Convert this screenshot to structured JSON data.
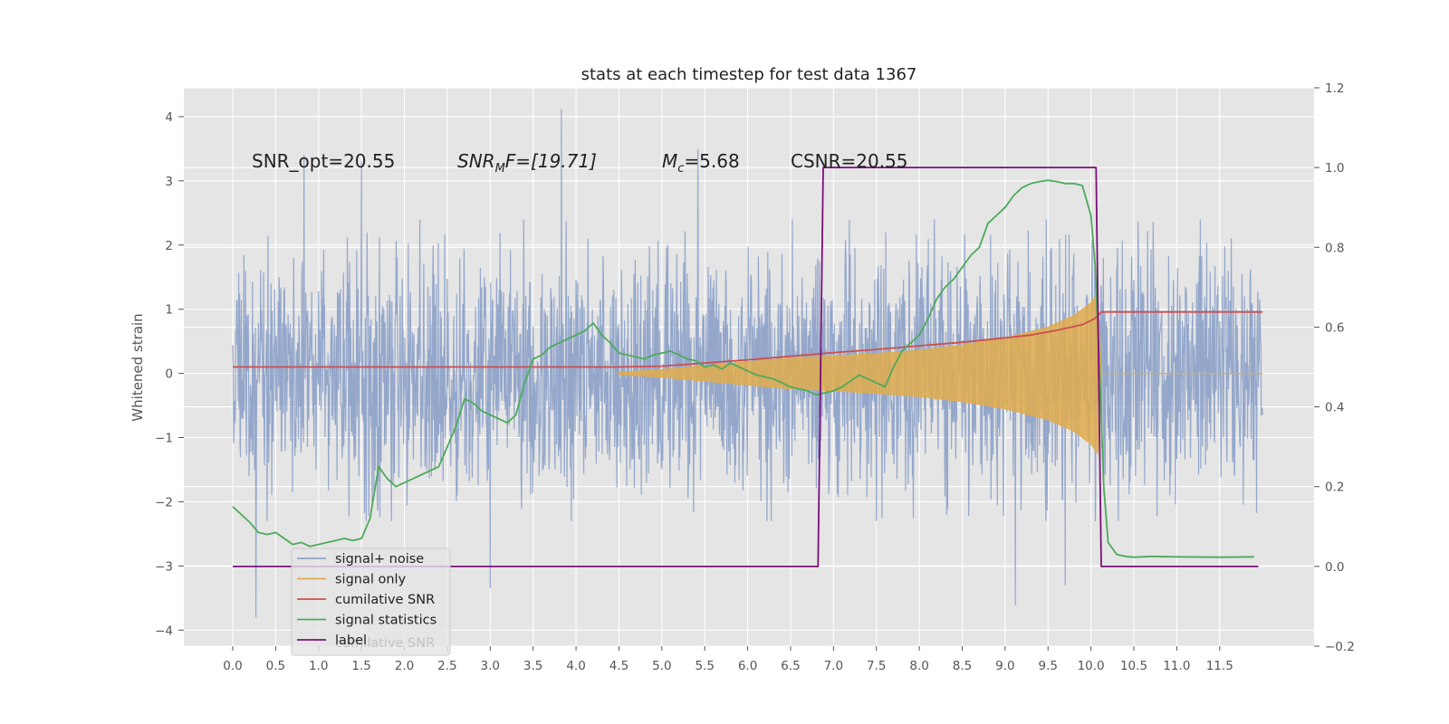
{
  "chart_data": {
    "type": "line",
    "title": "stats at each timestep for test data 1367",
    "ylabel": "Whitened strain",
    "xlim": [
      -0.57,
      12.6
    ],
    "ylim": [
      -4.25,
      4.45
    ],
    "ylim_right": [
      -0.2,
      1.2
    ],
    "grid": true,
    "x_ticks": [
      "0.0",
      "0.5",
      "1.0",
      "1.5",
      "2.0",
      "2.5",
      "3.0",
      "3.5",
      "4.0",
      "4.5",
      "5.0",
      "5.5",
      "6.0",
      "6.5",
      "7.0",
      "7.5",
      "8.0",
      "8.5",
      "9.0",
      "9.5",
      "10.0",
      "10.5",
      "11.0",
      "11.5"
    ],
    "y_ticks": [
      "4",
      "3",
      "2",
      "1",
      "0",
      "−1",
      "−2",
      "−3",
      "−4"
    ],
    "y_ticks_right": [
      "1.2",
      "1.0",
      "0.8",
      "0.6",
      "0.4",
      "0.2",
      "0.0",
      "−0.2"
    ],
    "annotations": {
      "snr_opt": "SNR_opt=20.55",
      "snr_mf_main": "SNR",
      "snr_mf_sub": "M",
      "snr_mf_rest": "F=[19.71]",
      "mc_main": "M",
      "mc_sub": "c",
      "mc_rest": "=5.68",
      "csnr": "CSNR=20.55"
    },
    "legend": {
      "location": "lower left",
      "entries": [
        "signal+ noise",
        "signal only",
        "cumilative SNR",
        "signal statistics",
        "label"
      ],
      "hidden_text": "cumilative SNR"
    },
    "colors": {
      "background": "#e5e5e5",
      "noise": "#8fa3c9",
      "signal": "#e0ac4c",
      "cumulative_snr": "#cc4e4e",
      "statistics": "#4daa5a",
      "label": "#7a107a"
    },
    "series": [
      {
        "name": "signal+ noise",
        "axis": "left",
        "x_range": [
          0.0,
          12.0
        ],
        "typical_envelope": [
          -2.0,
          2.0
        ],
        "spikes": [
          [
            0.83,
            3.4
          ],
          [
            1.5,
            3.3
          ],
          [
            3.83,
            4.12
          ],
          [
            5.42,
            3.5
          ],
          [
            0.27,
            -3.8
          ],
          [
            3.0,
            -3.35
          ],
          [
            9.12,
            -3.62
          ],
          [
            9.7,
            -3.3
          ]
        ]
      },
      {
        "name": "signal only",
        "axis": "left",
        "envelope_x": [
          4.5,
          5.0,
          5.5,
          6.0,
          6.5,
          7.0,
          7.5,
          8.0,
          8.5,
          9.0,
          9.5,
          9.8,
          10.0,
          10.08,
          10.12
        ],
        "envelope_amp": [
          0.02,
          0.06,
          0.12,
          0.18,
          0.24,
          0.27,
          0.31,
          0.36,
          0.44,
          0.55,
          0.72,
          0.9,
          1.1,
          1.25,
          0.02
        ]
      },
      {
        "name": "cumilative SNR",
        "axis": "right",
        "x": [
          0.0,
          4.5,
          5.0,
          5.5,
          6.0,
          6.5,
          7.0,
          7.5,
          8.0,
          8.5,
          9.0,
          9.3,
          9.6,
          9.9,
          10.05,
          10.12,
          12.0
        ],
        "y": [
          0.5,
          0.5,
          0.502,
          0.51,
          0.518,
          0.527,
          0.536,
          0.544,
          0.553,
          0.562,
          0.573,
          0.58,
          0.592,
          0.606,
          0.622,
          0.638,
          0.638
        ]
      },
      {
        "name": "signal statistics",
        "axis": "right",
        "x": [
          0.0,
          0.1,
          0.2,
          0.3,
          0.4,
          0.5,
          0.6,
          0.7,
          0.8,
          0.9,
          1.0,
          1.1,
          1.2,
          1.3,
          1.4,
          1.5,
          1.6,
          1.7,
          1.8,
          1.9,
          2.0,
          2.1,
          2.2,
          2.3,
          2.4,
          2.5,
          2.6,
          2.7,
          2.8,
          2.9,
          3.0,
          3.1,
          3.2,
          3.3,
          3.4,
          3.5,
          3.6,
          3.7,
          3.8,
          3.9,
          4.0,
          4.1,
          4.2,
          4.3,
          4.4,
          4.5,
          4.6,
          4.7,
          4.8,
          4.9,
          5.0,
          5.1,
          5.2,
          5.3,
          5.4,
          5.5,
          5.6,
          5.7,
          5.8,
          5.9,
          6.0,
          6.1,
          6.2,
          6.3,
          6.4,
          6.5,
          6.6,
          6.7,
          6.8,
          6.9,
          7.0,
          7.1,
          7.2,
          7.3,
          7.4,
          7.5,
          7.6,
          7.7,
          7.8,
          7.9,
          8.0,
          8.1,
          8.2,
          8.3,
          8.4,
          8.5,
          8.6,
          8.7,
          8.8,
          8.9,
          9.0,
          9.1,
          9.2,
          9.3,
          9.4,
          9.5,
          9.6,
          9.7,
          9.8,
          9.9,
          10.0,
          10.05,
          10.1,
          10.15,
          10.2,
          10.3,
          10.4,
          10.5,
          10.7,
          11.0,
          11.5,
          11.9
        ],
        "y": [
          0.15,
          0.13,
          0.11,
          0.085,
          0.08,
          0.085,
          0.07,
          0.055,
          0.06,
          0.05,
          0.055,
          0.06,
          0.065,
          0.07,
          0.065,
          0.07,
          0.12,
          0.25,
          0.22,
          0.2,
          0.21,
          0.22,
          0.23,
          0.24,
          0.25,
          0.3,
          0.35,
          0.42,
          0.41,
          0.39,
          0.38,
          0.37,
          0.36,
          0.38,
          0.46,
          0.52,
          0.53,
          0.55,
          0.56,
          0.57,
          0.58,
          0.59,
          0.61,
          0.58,
          0.56,
          0.535,
          0.53,
          0.525,
          0.52,
          0.53,
          0.535,
          0.54,
          0.53,
          0.52,
          0.515,
          0.5,
          0.505,
          0.495,
          0.51,
          0.5,
          0.49,
          0.48,
          0.475,
          0.47,
          0.46,
          0.45,
          0.445,
          0.44,
          0.43,
          0.435,
          0.44,
          0.45,
          0.465,
          0.48,
          0.47,
          0.46,
          0.45,
          0.5,
          0.54,
          0.56,
          0.58,
          0.62,
          0.67,
          0.7,
          0.72,
          0.75,
          0.78,
          0.8,
          0.86,
          0.88,
          0.9,
          0.93,
          0.95,
          0.96,
          0.965,
          0.968,
          0.965,
          0.96,
          0.96,
          0.955,
          0.88,
          0.75,
          0.5,
          0.2,
          0.06,
          0.03,
          0.025,
          0.023,
          0.025,
          0.024,
          0.023,
          0.024
        ]
      },
      {
        "name": "label",
        "axis": "right",
        "x": [
          0.0,
          6.82,
          6.88,
          10.06,
          10.12,
          11.95
        ],
        "y": [
          0.0,
          0.0,
          1.0,
          1.0,
          0.0,
          0.0
        ]
      }
    ]
  }
}
